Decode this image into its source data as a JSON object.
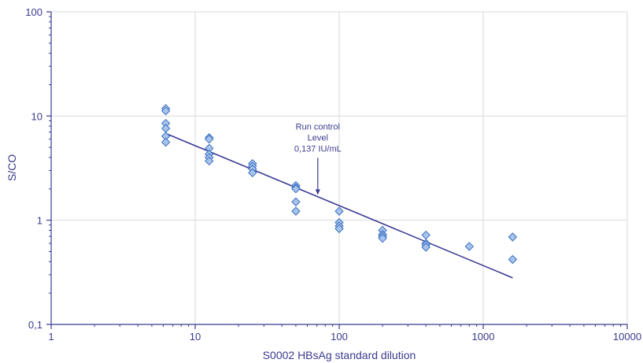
{
  "chart_data": {
    "type": "scatter",
    "title": "",
    "xlabel": "S0002 HBsAg standard dilution",
    "ylabel": "S/CO",
    "xscale": "log",
    "yscale": "log",
    "xlim": [
      1,
      10000
    ],
    "ylim": [
      0.1,
      100
    ],
    "grid": true,
    "x_ticks": [
      {
        "value": 1,
        "label": "1"
      },
      {
        "value": 10,
        "label": "10"
      },
      {
        "value": 100,
        "label": "100"
      },
      {
        "value": 1000,
        "label": "1000"
      },
      {
        "value": 10000,
        "label": "10000"
      }
    ],
    "y_ticks": [
      {
        "value": 0.1,
        "label": "0,1"
      },
      {
        "value": 1,
        "label": "1"
      },
      {
        "value": 10,
        "label": "10"
      },
      {
        "value": 100,
        "label": "100"
      }
    ],
    "series": [
      {
        "kind": "points",
        "points": [
          [
            6.25,
            11.8
          ],
          [
            6.25,
            11.2
          ],
          [
            6.25,
            8.5
          ],
          [
            6.25,
            7.6
          ],
          [
            6.25,
            6.4
          ],
          [
            6.25,
            5.6
          ],
          [
            12.5,
            6.2
          ],
          [
            12.5,
            6.0
          ],
          [
            12.5,
            4.9
          ],
          [
            12.5,
            4.3
          ],
          [
            12.5,
            4.0
          ],
          [
            12.5,
            3.7
          ],
          [
            25,
            3.5
          ],
          [
            25,
            3.3
          ],
          [
            25,
            3.1
          ],
          [
            25,
            2.85
          ],
          [
            50,
            2.15
          ],
          [
            50,
            2.05
          ],
          [
            50,
            2.0
          ],
          [
            50,
            1.5
          ],
          [
            50,
            1.22
          ],
          [
            100,
            1.22
          ],
          [
            100,
            0.95
          ],
          [
            100,
            0.88
          ],
          [
            100,
            0.83
          ],
          [
            200,
            0.8
          ],
          [
            200,
            0.73
          ],
          [
            200,
            0.7
          ],
          [
            200,
            0.67
          ],
          [
            400,
            0.72
          ],
          [
            400,
            0.6
          ],
          [
            400,
            0.58
          ],
          [
            400,
            0.55
          ],
          [
            800,
            0.56
          ],
          [
            1600,
            0.69
          ],
          [
            1600,
            0.42
          ]
        ]
      },
      {
        "kind": "fit-line",
        "points": [
          [
            6.25,
            6.8
          ],
          [
            1600,
            0.28
          ]
        ]
      }
    ],
    "annotations": [
      {
        "lines": [
          "Run control",
          "Level",
          "0,137 IU/mL"
        ],
        "arrow_target": [
          71,
          1.75
        ]
      }
    ],
    "colors": {
      "axis": "#3b3b8f",
      "grid": "#d9d9d9",
      "marker_fill": "#a9c4ea",
      "marker_stroke": "#3a6fc4",
      "fit_line": "#3b3b94",
      "text": "#3b3b8f",
      "annotation_text": "#3b3b8f"
    }
  }
}
